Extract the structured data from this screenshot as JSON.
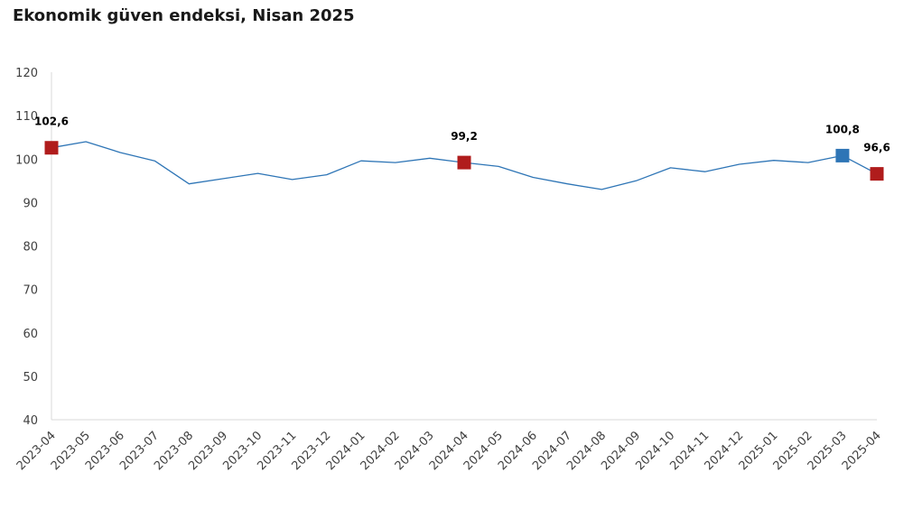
{
  "chart_data": {
    "type": "line",
    "title": "Ekonomik güven endeksi, Nisan 2025",
    "xlabel": "",
    "ylabel": "",
    "ylim": [
      40,
      120
    ],
    "yticks": [
      40,
      50,
      60,
      70,
      80,
      90,
      100,
      110,
      120
    ],
    "grid": false,
    "categories": [
      "2023-04",
      "2023-05",
      "2023-06",
      "2023-07",
      "2023-08",
      "2023-09",
      "2023-10",
      "2023-11",
      "2023-12",
      "2024-01",
      "2024-02",
      "2024-03",
      "2024-04",
      "2024-05",
      "2024-06",
      "2024-07",
      "2024-08",
      "2024-09",
      "2024-10",
      "2024-11",
      "2024-12",
      "2025-01",
      "2025-02",
      "2025-03",
      "2025-04"
    ],
    "series": [
      {
        "values": [
          102.6,
          104.0,
          101.5,
          99.6,
          94.3,
          95.5,
          96.7,
          95.3,
          96.4,
          99.6,
          99.2,
          100.2,
          99.2,
          98.3,
          95.8,
          94.3,
          93.0,
          95.0,
          98.0,
          97.1,
          98.8,
          99.7,
          99.2,
          100.8,
          96.6
        ],
        "color": "#2e75b6"
      }
    ],
    "highlights": [
      {
        "category": "2023-04",
        "value": 102.6,
        "label": "102,6",
        "color": "#b01c1c"
      },
      {
        "category": "2024-04",
        "value": 99.2,
        "label": "99,2",
        "color": "#b01c1c"
      },
      {
        "category": "2025-03",
        "value": 100.8,
        "label": "100,8",
        "color": "#2e75b6"
      },
      {
        "category": "2025-04",
        "value": 96.6,
        "label": "96,6",
        "color": "#b01c1c"
      }
    ]
  }
}
